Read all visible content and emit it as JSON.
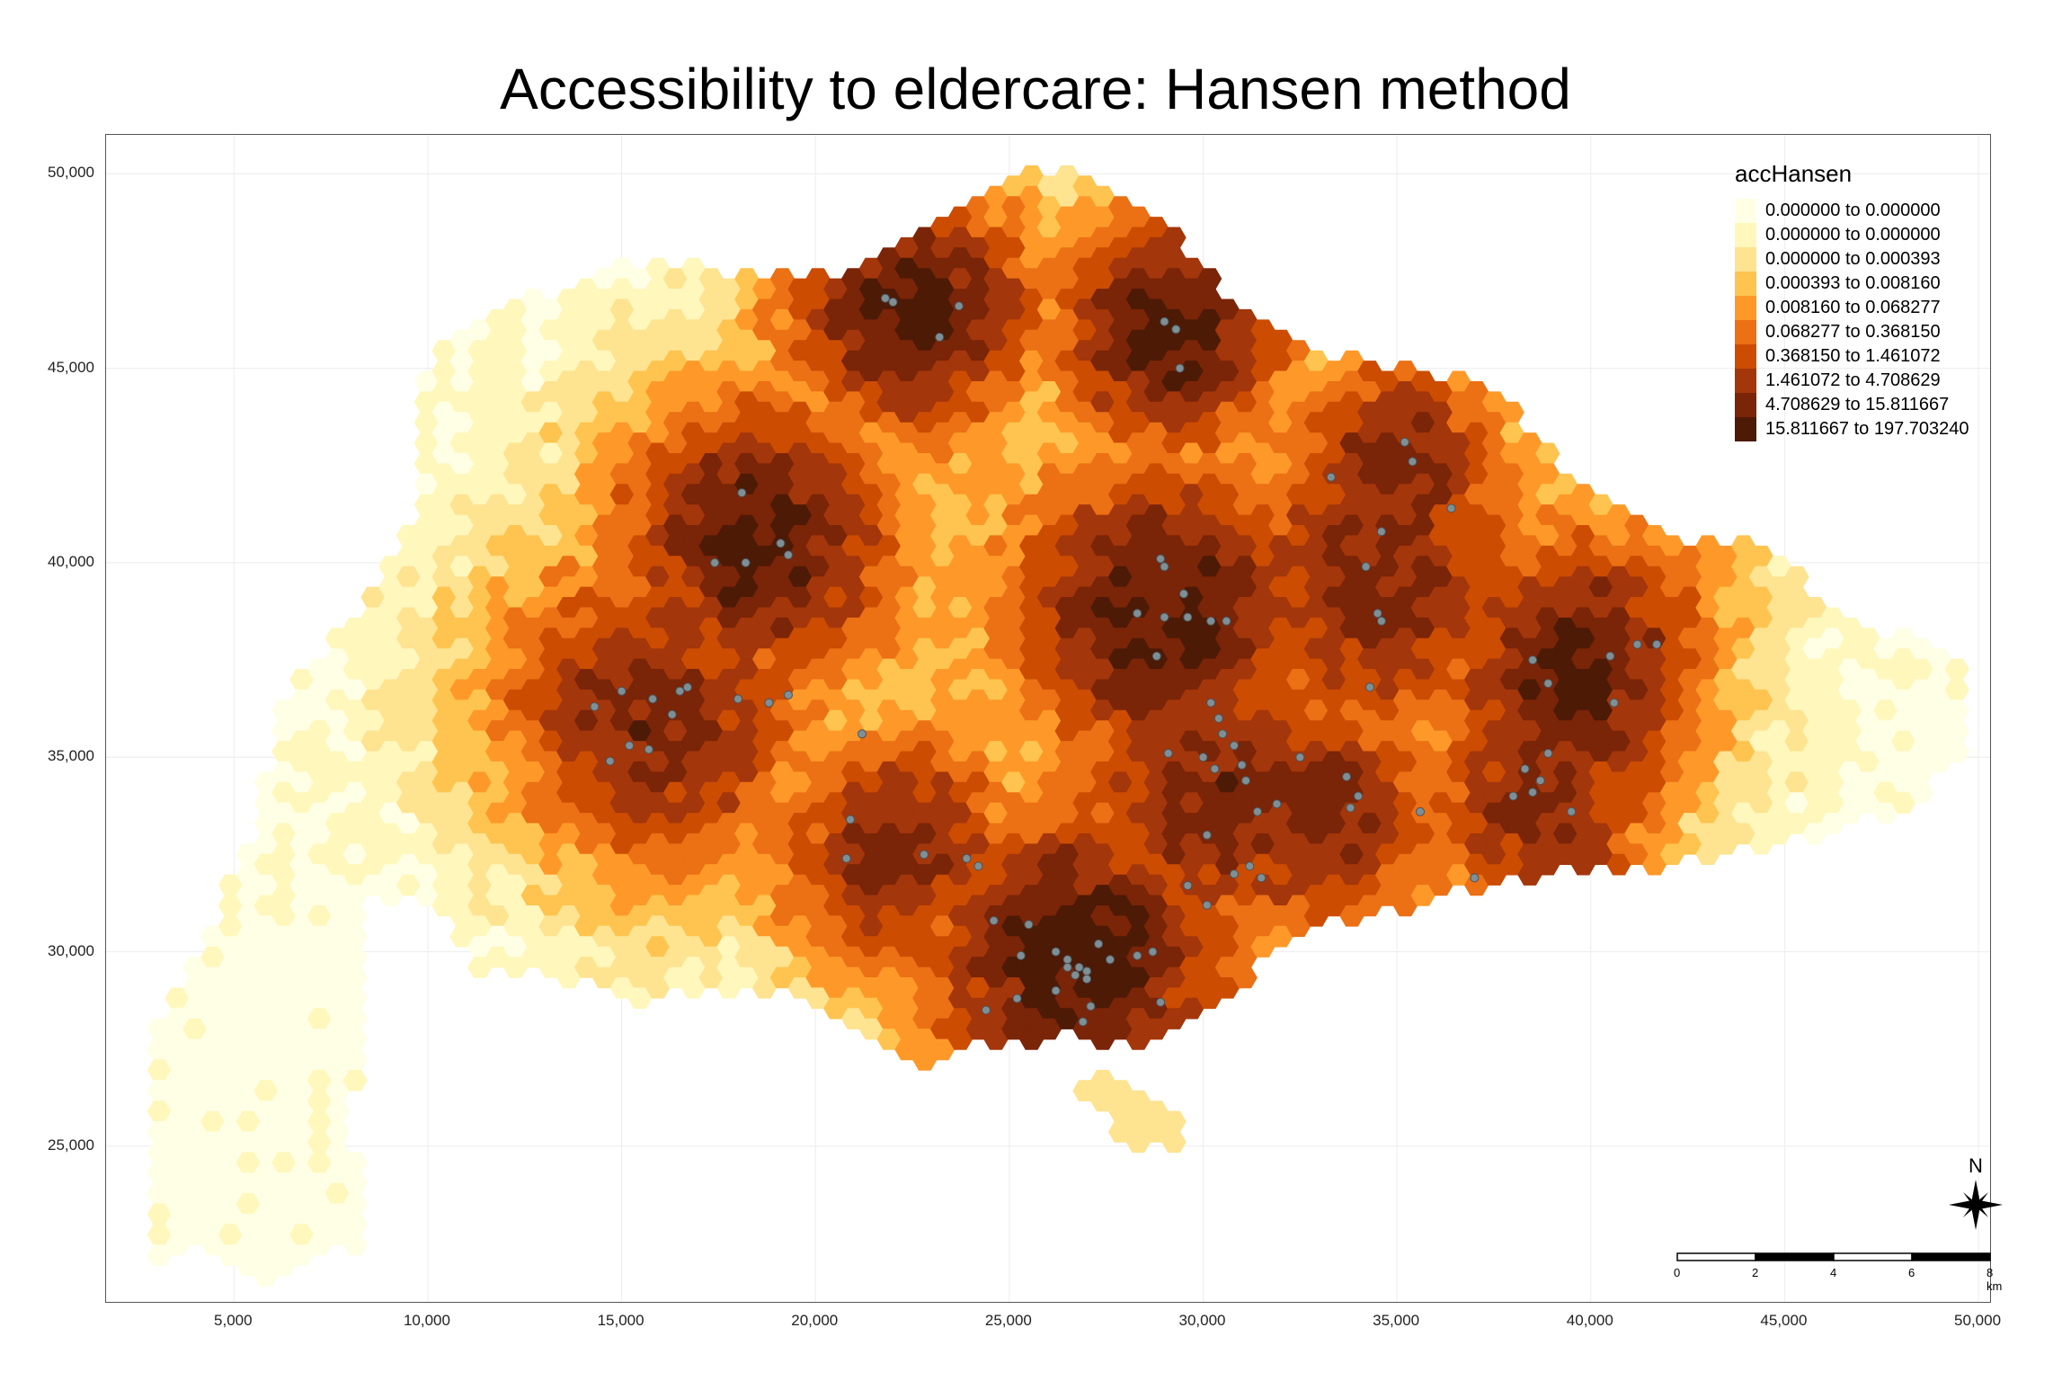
{
  "title": "Accessibility to eldercare: Hansen method",
  "map": {
    "x_ticks": [
      "5,000",
      "10,000",
      "15,000",
      "20,000",
      "25,000",
      "30,000",
      "35,000",
      "40,000",
      "45,000",
      "50,000"
    ],
    "y_ticks": [
      "50,000",
      "45,000",
      "40,000",
      "35,000",
      "30,000",
      "25,000"
    ],
    "x_tick_values": [
      5000,
      10000,
      15000,
      20000,
      25000,
      30000,
      35000,
      40000,
      45000,
      50000
    ],
    "y_tick_values": [
      50000,
      45000,
      40000,
      35000,
      30000,
      25000
    ],
    "xlim": [
      1700,
      50300
    ],
    "ylim": [
      21000,
      51000
    ],
    "gridlines": true,
    "point_color": "#7f8f96"
  },
  "legend": {
    "title": "accHansen",
    "placement": "top-right",
    "items": [
      {
        "label": "0.000000 to 0.000000",
        "color": "#ffffe5"
      },
      {
        "label": "0.000000 to 0.000000",
        "color": "#fff7bc"
      },
      {
        "label": "0.000000 to 0.000393",
        "color": "#fee391"
      },
      {
        "label": "0.000393 to 0.008160",
        "color": "#fec44f"
      },
      {
        "label": "0.008160 to 0.068277",
        "color": "#fe9929"
      },
      {
        "label": "0.068277 to 0.368150",
        "color": "#ec7014"
      },
      {
        "label": "0.368150 to 1.461072",
        "color": "#cc4c02"
      },
      {
        "label": "1.461072 to 4.708629",
        "color": "#a3360a"
      },
      {
        "label": "4.708629 to 15.811667",
        "color": "#7a2408"
      },
      {
        "label": "15.811667 to 197.703240",
        "color": "#4d1a06"
      }
    ]
  },
  "north_arrow": {
    "label": "N"
  },
  "scale_bar": {
    "labels": [
      "0",
      "2",
      "4",
      "6",
      "8 km"
    ]
  },
  "hotspots": [
    {
      "x": 22500,
      "y": 46500,
      "level": 9,
      "r": 2000
    },
    {
      "x": 29200,
      "y": 46000,
      "level": 9,
      "r": 1900
    },
    {
      "x": 18500,
      "y": 40500,
      "level": 9,
      "r": 2300
    },
    {
      "x": 15500,
      "y": 35700,
      "level": 9,
      "r": 2500
    },
    {
      "x": 29000,
      "y": 38700,
      "level": 9,
      "r": 2500
    },
    {
      "x": 34500,
      "y": 39500,
      "level": 8,
      "r": 2500
    },
    {
      "x": 35000,
      "y": 42500,
      "level": 8,
      "r": 1800
    },
    {
      "x": 26800,
      "y": 29800,
      "level": 9,
      "r": 2600
    },
    {
      "x": 30500,
      "y": 34000,
      "level": 8,
      "r": 2400
    },
    {
      "x": 40000,
      "y": 37000,
      "level": 9,
      "r": 2300
    },
    {
      "x": 38800,
      "y": 34000,
      "level": 8,
      "r": 2000
    },
    {
      "x": 22000,
      "y": 32500,
      "level": 8,
      "r": 2000
    },
    {
      "x": 33000,
      "y": 33500,
      "level": 8,
      "r": 2000
    }
  ],
  "facilities": [
    [
      21800,
      46800
    ],
    [
      22000,
      46700
    ],
    [
      23200,
      45800
    ],
    [
      23700,
      46600
    ],
    [
      29000,
      46200
    ],
    [
      29300,
      46000
    ],
    [
      29400,
      45000
    ],
    [
      18100,
      41800
    ],
    [
      18200,
      40000
    ],
    [
      19100,
      40500
    ],
    [
      17400,
      40000
    ],
    [
      19300,
      40200
    ],
    [
      14300,
      36300
    ],
    [
      15000,
      36700
    ],
    [
      15800,
      36500
    ],
    [
      16300,
      36100
    ],
    [
      15200,
      35300
    ],
    [
      15700,
      35200
    ],
    [
      14700,
      34900
    ],
    [
      16500,
      36700
    ],
    [
      16700,
      36800
    ],
    [
      18000,
      36500
    ],
    [
      18800,
      36400
    ],
    [
      19300,
      36600
    ],
    [
      21200,
      35600
    ],
    [
      28900,
      40100
    ],
    [
      29000,
      39900
    ],
    [
      29500,
      39200
    ],
    [
      28300,
      38700
    ],
    [
      29000,
      38600
    ],
    [
      29600,
      38600
    ],
    [
      30200,
      38500
    ],
    [
      30600,
      38500
    ],
    [
      28800,
      37600
    ],
    [
      30200,
      36400
    ],
    [
      30400,
      36000
    ],
    [
      30500,
      35600
    ],
    [
      30800,
      35300
    ],
    [
      31000,
      34800
    ],
    [
      29100,
      35100
    ],
    [
      30000,
      35000
    ],
    [
      30300,
      34700
    ],
    [
      31100,
      34400
    ],
    [
      32500,
      35000
    ],
    [
      33700,
      34500
    ],
    [
      34000,
      34000
    ],
    [
      33800,
      33700
    ],
    [
      35600,
      33600
    ],
    [
      34600,
      38500
    ],
    [
      34500,
      38700
    ],
    [
      34200,
      39900
    ],
    [
      34600,
      40800
    ],
    [
      33300,
      42200
    ],
    [
      35200,
      43100
    ],
    [
      35400,
      42600
    ],
    [
      36400,
      41400
    ],
    [
      34300,
      36800
    ],
    [
      38500,
      37500
    ],
    [
      38900,
      36900
    ],
    [
      40500,
      37600
    ],
    [
      41200,
      37900
    ],
    [
      41700,
      37900
    ],
    [
      40600,
      36400
    ],
    [
      38900,
      35100
    ],
    [
      38300,
      34700
    ],
    [
      38500,
      34100
    ],
    [
      38000,
      34000
    ],
    [
      38700,
      34400
    ],
    [
      39500,
      33600
    ],
    [
      37000,
      31900
    ],
    [
      20900,
      33400
    ],
    [
      20800,
      32400
    ],
    [
      22800,
      32500
    ],
    [
      23900,
      32400
    ],
    [
      24200,
      32200
    ],
    [
      31400,
      33600
    ],
    [
      31900,
      33800
    ],
    [
      30100,
      33000
    ],
    [
      30800,
      32000
    ],
    [
      31200,
      32200
    ],
    [
      31500,
      31900
    ],
    [
      30100,
      31200
    ],
    [
      29600,
      31700
    ],
    [
      24600,
      30800
    ],
    [
      25500,
      30700
    ],
    [
      25300,
      29900
    ],
    [
      25200,
      28800
    ],
    [
      26200,
      30000
    ],
    [
      26500,
      29800
    ],
    [
      26800,
      29600
    ],
    [
      27000,
      29500
    ],
    [
      27300,
      30200
    ],
    [
      27600,
      29800
    ],
    [
      28300,
      29900
    ],
    [
      28700,
      30000
    ],
    [
      26200,
      29000
    ],
    [
      26900,
      28200
    ],
    [
      27100,
      28600
    ],
    [
      28900,
      28700
    ],
    [
      27000,
      29300
    ],
    [
      26700,
      29400
    ],
    [
      26500,
      29600
    ],
    [
      24400,
      28500
    ]
  ]
}
